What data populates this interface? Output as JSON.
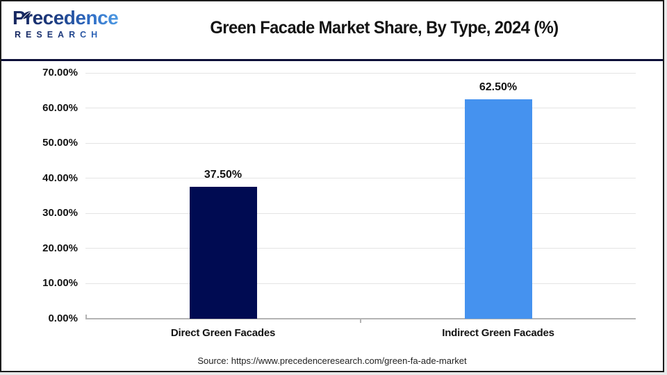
{
  "logo": {
    "name": "Precedence",
    "subtitle": "RESEARCH"
  },
  "chart_data": {
    "type": "bar",
    "title": "Green Facade Market Share, By Type, 2024 (%)",
    "categories": [
      "Direct Green Facades",
      "Indirect Green Facades"
    ],
    "values": [
      37.5,
      62.5
    ],
    "value_labels": [
      "37.50%",
      "62.50%"
    ],
    "bar_colors": [
      "#000b52",
      "#4592ef"
    ],
    "xlabel": "",
    "ylabel": "",
    "ylim": [
      0,
      70
    ],
    "ytick_step": 10,
    "ytick_labels_top_down": [
      "70.00%",
      "60.00%",
      "50.00%",
      "40.00%",
      "30.00%",
      "20.00%",
      "10.00%",
      "0.00%"
    ],
    "grid": true,
    "legend": false
  },
  "footer": {
    "source": "Source: https://www.precedenceresearch.com/green-fa-ade-market"
  },
  "colors": {
    "bar_direct": "#000b52",
    "bar_indirect": "#4592ef",
    "divider": "#0d0f38",
    "gridline": "#e4e4e4",
    "axis_line": "#b3b3b3",
    "logo_dark": "#16265e",
    "logo_light": "#55a4ea"
  }
}
